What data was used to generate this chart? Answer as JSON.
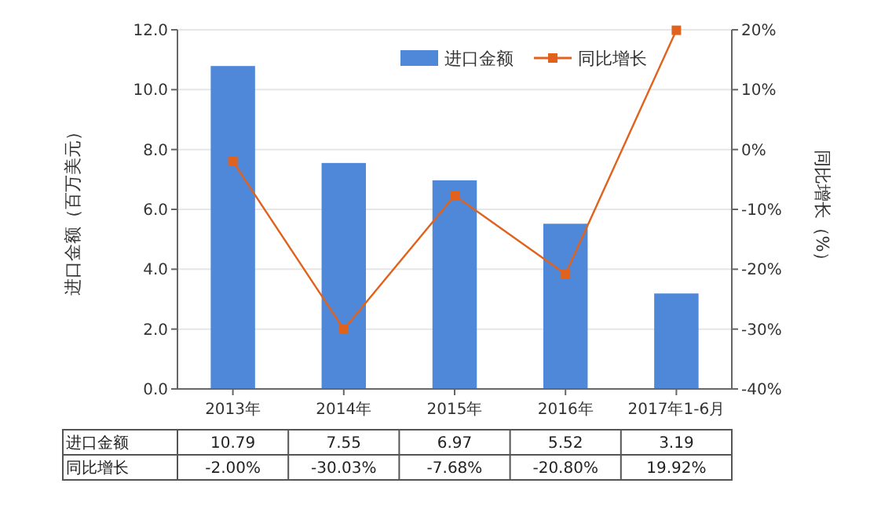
{
  "chart_data": {
    "type": "bar",
    "categories": [
      "2013年",
      "2014年",
      "2015年",
      "2016年",
      "2017年1-6月"
    ],
    "ylabel": "进口金额（百万美元）",
    "y2label": "同比增长（%）",
    "ylim": [
      0,
      12
    ],
    "yticks": [
      {
        "value": 0,
        "label": "0.0"
      },
      {
        "value": 2,
        "label": "2.0"
      },
      {
        "value": 4,
        "label": "4.0"
      },
      {
        "value": 6,
        "label": "6.0"
      },
      {
        "value": 8,
        "label": "8.0"
      },
      {
        "value": 10,
        "label": "10.0"
      },
      {
        "value": 12,
        "label": "12.0"
      }
    ],
    "y2lim": [
      -40,
      20
    ],
    "y2ticks": [
      {
        "value": -40,
        "label": "-40%"
      },
      {
        "value": -30,
        "label": "-30%"
      },
      {
        "value": -20,
        "label": "-20%"
      },
      {
        "value": -10,
        "label": "-10%"
      },
      {
        "value": 0,
        "label": "0%"
      },
      {
        "value": 10,
        "label": "10%"
      },
      {
        "value": 20,
        "label": "20%"
      }
    ],
    "grid": "y",
    "legend": "top right",
    "marker": "square",
    "series": [
      {
        "name": "进口金额",
        "color": "#4f88d8",
        "values": [
          10.79,
          7.55,
          6.97,
          5.52,
          3.19
        ],
        "value_labels": [
          "10.79",
          "7.55",
          "6.97",
          "5.52",
          "3.19"
        ]
      },
      {
        "name": "同比增长",
        "type": "line",
        "axis": "y2",
        "color": "#e0621c",
        "values": [
          -2.0,
          -30.03,
          -7.68,
          -20.8,
          19.92
        ],
        "value_labels": [
          "-2.00%",
          "-30.03%",
          "-7.68%",
          "-20.80%",
          "19.92%"
        ]
      }
    ]
  }
}
